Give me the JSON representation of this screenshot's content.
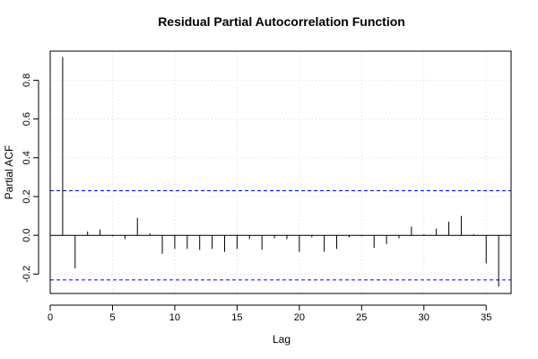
{
  "chart_data": {
    "type": "bar",
    "title": "Residual Partial Autocorrelation Function",
    "xlabel": "Lag",
    "ylabel": "Partial ACF",
    "xlim": [
      0,
      37
    ],
    "ylim": [
      -0.3,
      0.95
    ],
    "x_ticks": [
      "0",
      "5",
      "10",
      "15",
      "20",
      "25",
      "30",
      "35"
    ],
    "y_ticks": [
      "-0.2",
      "0.0",
      "0.2",
      "0.4",
      "0.6",
      "0.8"
    ],
    "grid": true,
    "confidence_bound": 0.23,
    "confidence_color": "#0000ff",
    "lags": [
      1,
      2,
      3,
      4,
      5,
      6,
      7,
      8,
      9,
      10,
      11,
      12,
      13,
      14,
      15,
      16,
      17,
      18,
      19,
      20,
      21,
      22,
      23,
      24,
      25,
      26,
      27,
      28,
      29,
      30,
      31,
      32,
      33,
      34,
      35,
      36
    ],
    "values": [
      0.92,
      -0.17,
      0.02,
      0.03,
      -0.005,
      -0.02,
      0.09,
      0.01,
      -0.095,
      -0.07,
      -0.07,
      -0.075,
      -0.07,
      -0.085,
      -0.07,
      -0.02,
      -0.075,
      -0.015,
      -0.02,
      -0.085,
      -0.01,
      -0.085,
      -0.07,
      -0.01,
      -0.005,
      -0.065,
      -0.045,
      -0.015,
      0.045,
      0.005,
      0.035,
      0.07,
      0.1,
      0.005,
      -0.145,
      -0.265
    ]
  }
}
